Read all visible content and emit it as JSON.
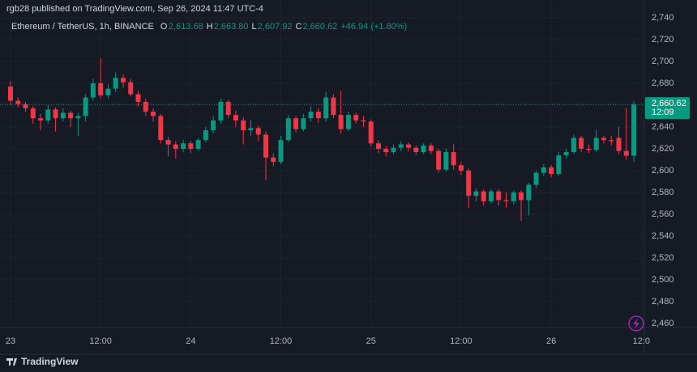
{
  "header": {
    "published": "rgb28 published on TradingView.com, Sep 26, 2024 11:47 UTC-4"
  },
  "chart_data": {
    "type": "candlestick",
    "symbol": "Ethereum / TetherUS, 1h, BINANCE",
    "ohlc_legend": [
      {
        "key": "O",
        "label": "2,613.68"
      },
      {
        "key": "H",
        "label": "2,663.80"
      },
      {
        "key": "L",
        "label": "2,607.92"
      },
      {
        "key": "C",
        "label": "2,660.62"
      }
    ],
    "change_label": "+46.94 (+1.80%)",
    "last_price_label": "2,660.62",
    "countdown": "12:09",
    "up_color": "#089981",
    "down_color": "#f23645",
    "grid": true,
    "open": [
      2677,
      2664,
      2661,
      2657,
      2648,
      2646,
      2656,
      2648,
      2653,
      2648,
      2650,
      2667,
      2680,
      2669,
      2675,
      2685,
      2681,
      2670,
      2663,
      2654,
      2650,
      2628,
      2624,
      2620,
      2625,
      2620,
      2628,
      2637,
      2646,
      2663,
      2651,
      2646,
      2637,
      2639,
      2633,
      2612,
      2608,
      2628,
      2648,
      2638,
      2648,
      2654,
      2648,
      2667,
      2651,
      2638,
      2651,
      2646,
      2645,
      2625,
      2620,
      2617,
      2621,
      2624,
      2621,
      2617,
      2623,
      2618,
      2601,
      2617,
      2605,
      2600,
      2577,
      2581,
      2572,
      2581,
      2573,
      2572,
      2580,
      2573,
      2587,
      2598,
      2603,
      2597,
      2614,
      2617,
      2630,
      2620,
      2619,
      2630,
      2628,
      2630,
      2618,
      2613.68
    ],
    "high": [
      2682,
      2667,
      2663,
      2659,
      2652,
      2660,
      2658,
      2657,
      2655,
      2653,
      2670,
      2684,
      2703,
      2679,
      2690,
      2688,
      2684,
      2673,
      2666,
      2657,
      2652,
      2631,
      2627,
      2628,
      2627,
      2630,
      2640,
      2650,
      2666,
      2665,
      2655,
      2649,
      2646,
      2641,
      2636,
      2616,
      2632,
      2651,
      2650,
      2652,
      2659,
      2657,
      2672,
      2670,
      2673,
      2654,
      2653,
      2650,
      2647,
      2628,
      2623,
      2624,
      2627,
      2626,
      2623,
      2625,
      2625,
      2620,
      2620,
      2624,
      2608,
      2602,
      2584,
      2583,
      2583,
      2583,
      2580,
      2582,
      2582,
      2589,
      2600,
      2606,
      2605,
      2617,
      2620,
      2633,
      2632,
      2624,
      2637,
      2632,
      2632,
      2640,
      2657,
      2663.8
    ],
    "low": [
      2660,
      2658,
      2654,
      2643,
      2637,
      2643,
      2636,
      2645,
      2640,
      2632,
      2645,
      2664,
      2666,
      2666,
      2672,
      2676,
      2668,
      2659,
      2650,
      2645,
      2625,
      2613,
      2611,
      2617,
      2616,
      2618,
      2626,
      2634,
      2643,
      2648,
      2640,
      2624,
      2632,
      2627,
      2591,
      2604,
      2606,
      2626,
      2635,
      2636,
      2645,
      2644,
      2645,
      2648,
      2634,
      2636,
      2643,
      2640,
      2622,
      2616,
      2613,
      2615,
      2618,
      2618,
      2614,
      2615,
      2615,
      2598,
      2599,
      2601,
      2596,
      2566,
      2572,
      2568,
      2570,
      2568,
      2566,
      2569,
      2554,
      2559,
      2584,
      2595,
      2594,
      2595,
      2611,
      2615,
      2617,
      2616,
      2617,
      2625,
      2623,
      2615,
      2610,
      2607.92
    ],
    "close": [
      2664,
      2661,
      2657,
      2648,
      2646,
      2656,
      2648,
      2653,
      2648,
      2650,
      2667,
      2680,
      2669,
      2675,
      2685,
      2681,
      2670,
      2663,
      2654,
      2650,
      2628,
      2624,
      2620,
      2625,
      2620,
      2628,
      2637,
      2646,
      2663,
      2651,
      2646,
      2637,
      2639,
      2633,
      2612,
      2608,
      2628,
      2648,
      2638,
      2648,
      2654,
      2648,
      2667,
      2651,
      2638,
      2651,
      2646,
      2645,
      2625,
      2620,
      2617,
      2621,
      2624,
      2621,
      2617,
      2623,
      2618,
      2601,
      2617,
      2605,
      2600,
      2577,
      2581,
      2572,
      2581,
      2573,
      2572,
      2580,
      2573,
      2587,
      2598,
      2603,
      2597,
      2614,
      2617,
      2630,
      2620,
      2619,
      2630,
      2628,
      2627,
      2618,
      2613.68,
      2660.62
    ],
    "xlim": [
      -1.4,
      84.4
    ],
    "xticks": [
      {
        "value": 0,
        "label": "23"
      },
      {
        "value": 12,
        "label": "12:00"
      },
      {
        "value": 24,
        "label": "24"
      },
      {
        "value": 36,
        "label": "12:00"
      },
      {
        "value": 48,
        "label": "25"
      },
      {
        "value": 60,
        "label": "12:00"
      },
      {
        "value": 72,
        "label": "26"
      },
      {
        "value": 84,
        "label": "12:0"
      }
    ],
    "ylim": [
      2456.3,
      2756.3
    ],
    "yticks": [
      {
        "value": 2460,
        "label": "2,460"
      },
      {
        "value": 2480,
        "label": "2,480"
      },
      {
        "value": 2500,
        "label": "2,500"
      },
      {
        "value": 2520,
        "label": "2,520"
      },
      {
        "value": 2540,
        "label": "2,540"
      },
      {
        "value": 2560,
        "label": "2,560"
      },
      {
        "value": 2580,
        "label": "2,580"
      },
      {
        "value": 2600,
        "label": "2,600"
      },
      {
        "value": 2620,
        "label": "2,620"
      },
      {
        "value": 2640,
        "label": "2,640"
      },
      {
        "value": 2660,
        "label": "2,660"
      },
      {
        "value": 2680,
        "label": "2,680"
      },
      {
        "value": 2700,
        "label": "2,700"
      },
      {
        "value": 2720,
        "label": "2,720"
      },
      {
        "value": 2740,
        "label": "2,740"
      }
    ]
  },
  "footer": {
    "brand": "TradingView"
  }
}
